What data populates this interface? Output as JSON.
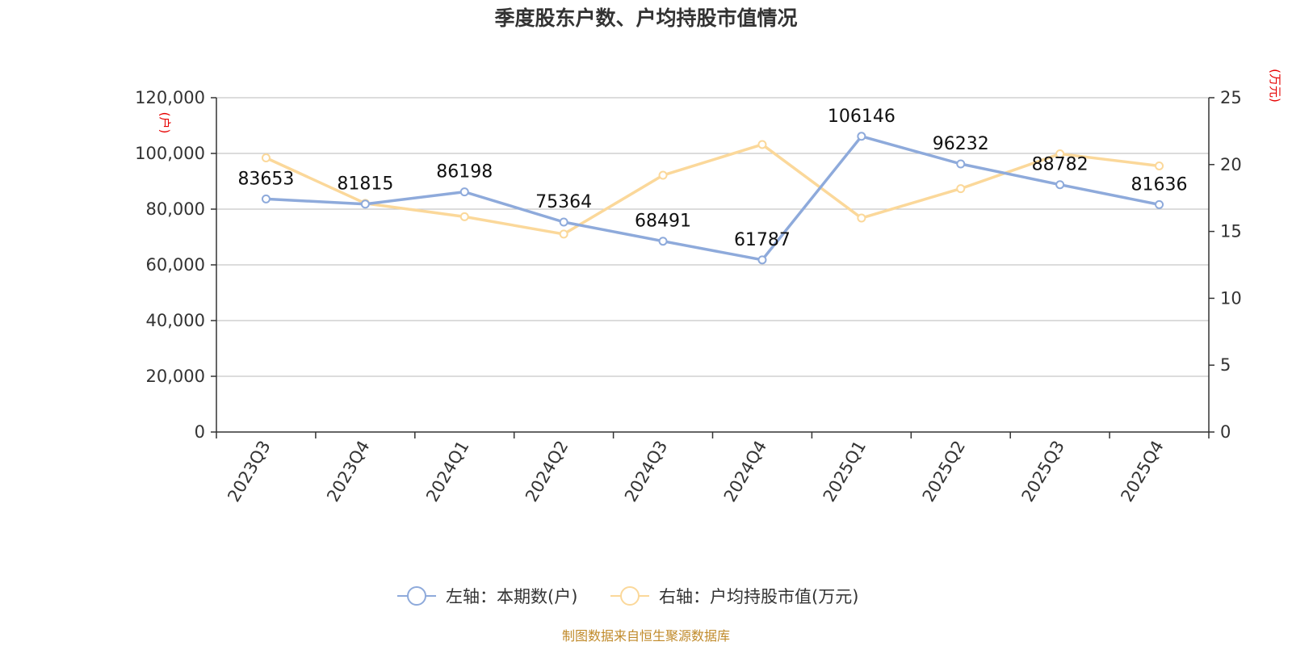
{
  "chart_data": {
    "type": "line",
    "title": "季度股东户数、户均持股市值情况",
    "categories": [
      "2023Q3",
      "2023Q4",
      "2024Q1",
      "2024Q2",
      "2024Q3",
      "2024Q4",
      "2025Q1",
      "2025Q2",
      "2025Q3",
      "2025Q4"
    ],
    "left_axis": {
      "unit": "(户)",
      "ylim": [
        0,
        120000
      ],
      "ticks": [
        "0",
        "20,000",
        "40,000",
        "60,000",
        "80,000",
        "100,000",
        "120,000"
      ]
    },
    "right_axis": {
      "unit": "(万元)",
      "ylim": [
        0,
        25
      ],
      "ticks": [
        "0",
        "5",
        "10",
        "15",
        "20",
        "25"
      ]
    },
    "series": [
      {
        "name": "左轴：本期数(户)",
        "axis": "left",
        "color": "#8eaadb",
        "values": [
          83653,
          81815,
          86198,
          75364,
          68491,
          61787,
          106146,
          96232,
          88782,
          81636
        ],
        "labels": [
          "83653",
          "81815",
          "86198",
          "75364",
          "68491",
          "61787",
          "106146",
          "96232",
          "88782",
          "81636"
        ]
      },
      {
        "name": "右轴：户均持股市值(万元)",
        "axis": "right",
        "color": "#fbd89a",
        "values": [
          20.5,
          17.1,
          16.1,
          14.8,
          19.2,
          21.5,
          16.0,
          18.2,
          20.8,
          19.9
        ]
      }
    ],
    "grid": true,
    "legend_position": "bottom-center"
  },
  "footer": {
    "source": "制图数据来自恒生聚源数据库"
  }
}
